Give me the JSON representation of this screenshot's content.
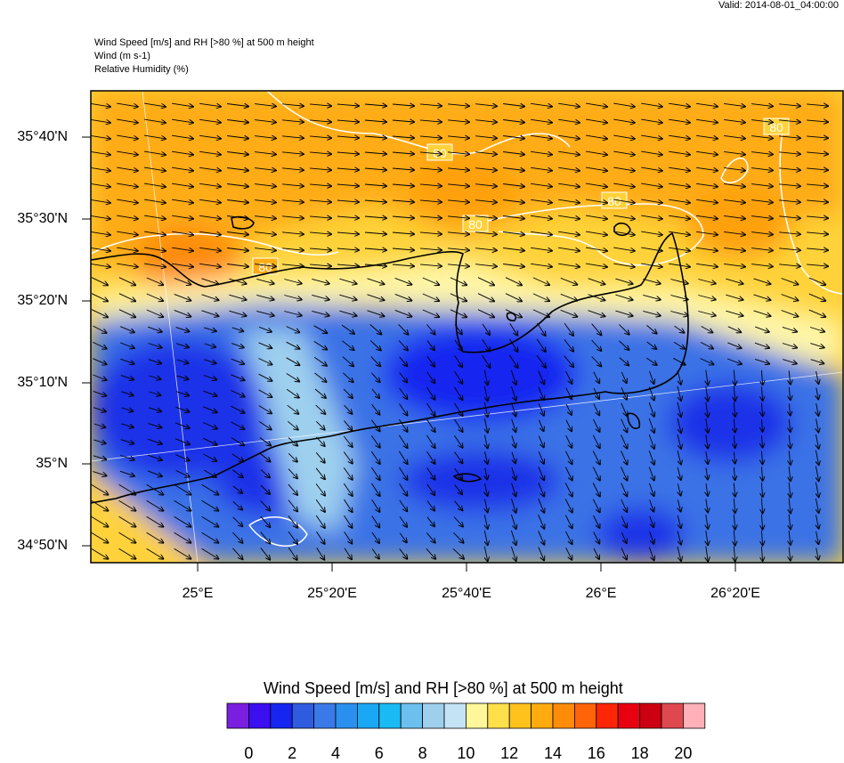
{
  "valid": "Valid: 2014-08-01_04:00:00",
  "header": {
    "line1": "Wind Speed [m/s] and RH [>80 %] at 500 m height",
    "line2": "Wind   (m s-1)",
    "line3": "Relative Humidity   (%)"
  },
  "lat_ticks": [
    "35°40'N",
    "35°30'N",
    "35°20'N",
    "35°10'N",
    "35°N",
    "34°50'N"
  ],
  "lon_ticks": [
    "25°E",
    "25°20'E",
    "25°40'E",
    "26°E",
    "26°20'E"
  ],
  "contour_label": "80",
  "colorbar": {
    "title": "Wind Speed [m/s] and RH [>80 %] at 500 m height",
    "labels": [
      "0",
      "2",
      "4",
      "6",
      "8",
      "10",
      "12",
      "14",
      "16",
      "18",
      "20"
    ],
    "colors": [
      "#7a1fe0",
      "#3b0fef",
      "#1626f0",
      "#2f5be0",
      "#3a7ae8",
      "#2a90f0",
      "#1aa8f5",
      "#1abaf5",
      "#6cc0ee",
      "#9ed0ee",
      "#c4e4f5",
      "#fff79a",
      "#ffe04a",
      "#ffc21c",
      "#ffab0f",
      "#ff8c08",
      "#ff6408",
      "#ff2608",
      "#e80010",
      "#cc0010",
      "#e04850",
      "#ffb0b8"
    ]
  }
}
